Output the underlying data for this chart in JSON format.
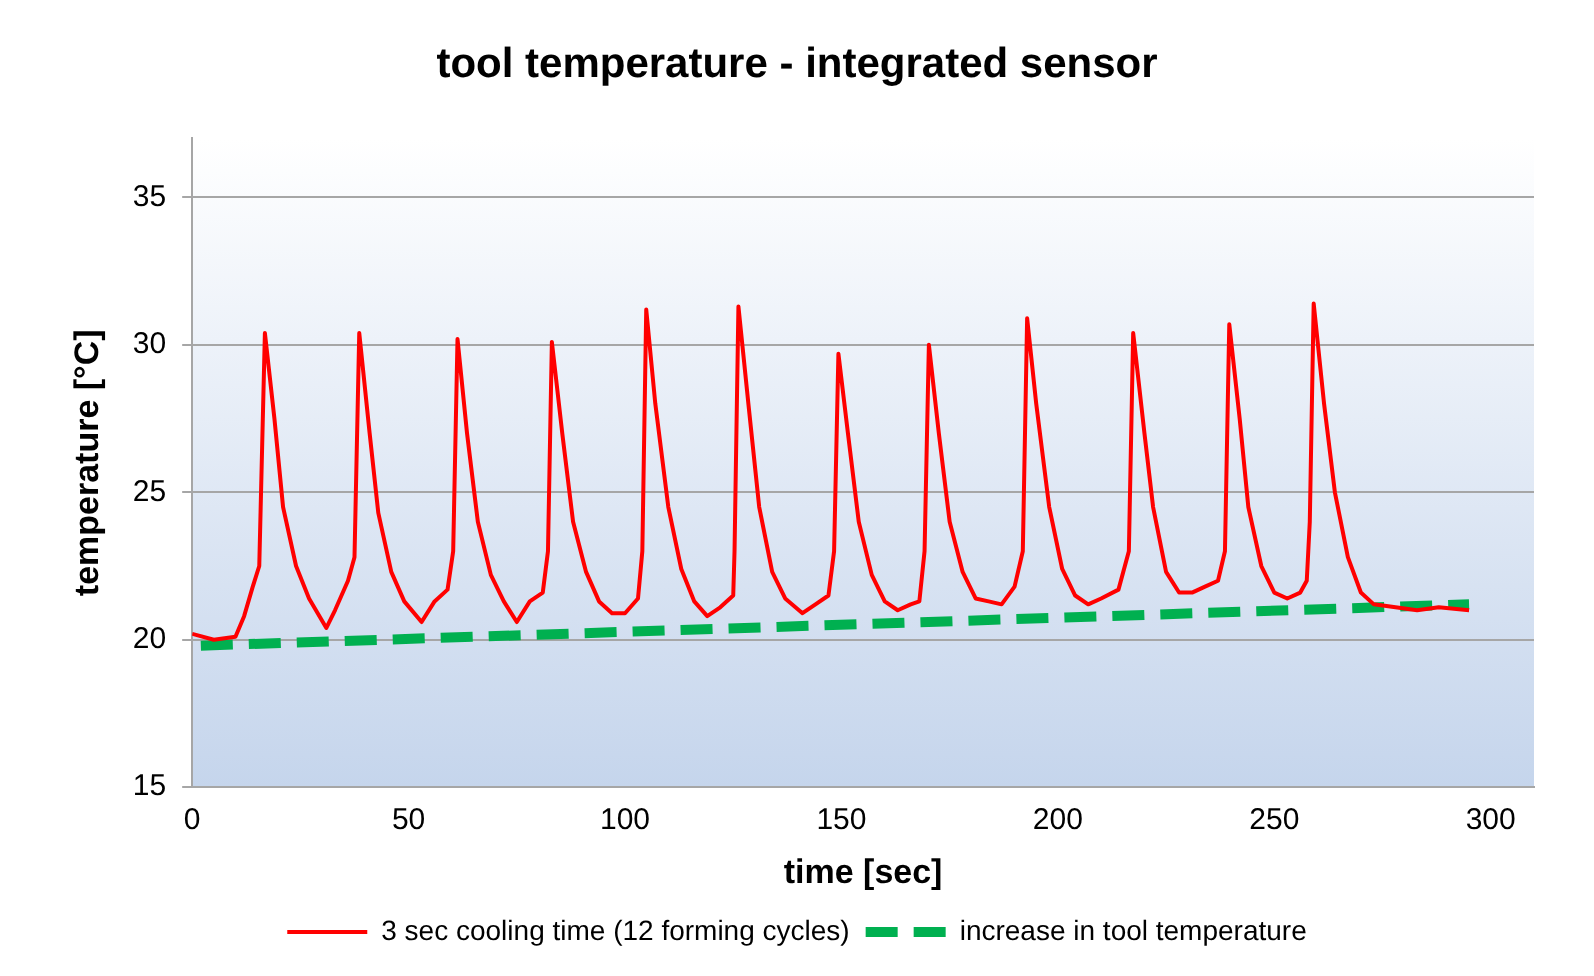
{
  "chart_data": {
    "type": "line",
    "title": "tool temperature - integrated sensor",
    "xlabel": "time [sec]",
    "ylabel": "temperature [°C]",
    "xlim": [
      0,
      310
    ],
    "xticks": [
      0,
      50,
      100,
      150,
      200,
      250,
      300
    ],
    "ylim": [
      15,
      37
    ],
    "yticks": [
      15,
      20,
      25,
      30,
      35
    ],
    "grid": "y",
    "legend": "bottom",
    "marker": "none",
    "series": [
      {
        "name": "3 sec cooling time (12 forming cycles)",
        "color": "#ff0000",
        "line_style": "solid",
        "x": [
          0,
          5,
          10,
          12,
          14,
          15.5,
          16.8,
          19,
          21,
          24,
          27,
          31,
          33,
          36,
          37.5,
          38.6,
          41,
          43,
          46,
          49,
          53,
          56,
          59,
          60.3,
          61.3,
          63.5,
          66,
          69,
          72,
          75,
          78,
          81,
          82.2,
          83.1,
          85.5,
          88,
          91,
          94,
          97,
          100,
          103,
          104,
          104.9,
          107,
          110,
          113,
          116,
          119,
          122,
          125,
          125.3,
          126.2,
          128.5,
          131,
          134,
          137,
          141,
          144,
          147,
          148.3,
          149.3,
          151.5,
          154,
          157,
          160,
          163,
          166,
          168,
          169.2,
          170.2,
          172.5,
          175,
          178,
          181,
          184,
          187,
          190,
          191.9,
          192.9,
          195,
          198,
          201,
          204,
          207,
          210,
          214,
          216.4,
          217.4,
          220,
          222,
          225,
          228,
          231,
          234,
          237,
          238.6,
          239.6,
          242,
          244,
          247,
          250,
          253,
          256,
          257.5,
          258.2,
          259.1,
          261.5,
          264,
          267,
          270,
          273,
          278,
          283,
          288,
          295
        ],
        "values": [
          20.2,
          20.0,
          20.1,
          20.8,
          21.8,
          22.5,
          30.4,
          27.5,
          24.5,
          22.5,
          21.4,
          20.4,
          21.0,
          22.0,
          22.8,
          30.4,
          27,
          24.3,
          22.3,
          21.3,
          20.6,
          21.3,
          21.7,
          23,
          30.2,
          27,
          24,
          22.2,
          21.3,
          20.6,
          21.3,
          21.6,
          23,
          30.1,
          27,
          24,
          22.3,
          21.3,
          20.9,
          20.9,
          21.4,
          23,
          31.2,
          28,
          24.5,
          22.4,
          21.3,
          20.8,
          21.1,
          21.5,
          23,
          31.3,
          28,
          24.5,
          22.3,
          21.4,
          20.9,
          21.2,
          21.5,
          23,
          29.7,
          27,
          24,
          22.2,
          21.3,
          21.0,
          21.2,
          21.3,
          23,
          30.0,
          27,
          24,
          22.3,
          21.4,
          21.3,
          21.2,
          21.8,
          23,
          30.9,
          28,
          24.5,
          22.4,
          21.5,
          21.2,
          21.4,
          21.7,
          23,
          30.4,
          27,
          24.5,
          22.3,
          21.6,
          21.6,
          21.8,
          22.0,
          23,
          30.7,
          27.5,
          24.5,
          22.5,
          21.6,
          21.4,
          21.6,
          22,
          24,
          31.4,
          28,
          25,
          22.8,
          21.6,
          21.2,
          21.1,
          21.0,
          21.1,
          21.0
        ]
      },
      {
        "name": "increase in tool temperature",
        "color": "#00b050",
        "line_style": "dashed",
        "x": [
          2,
          295
        ],
        "values": [
          19.8,
          21.2
        ]
      }
    ]
  }
}
